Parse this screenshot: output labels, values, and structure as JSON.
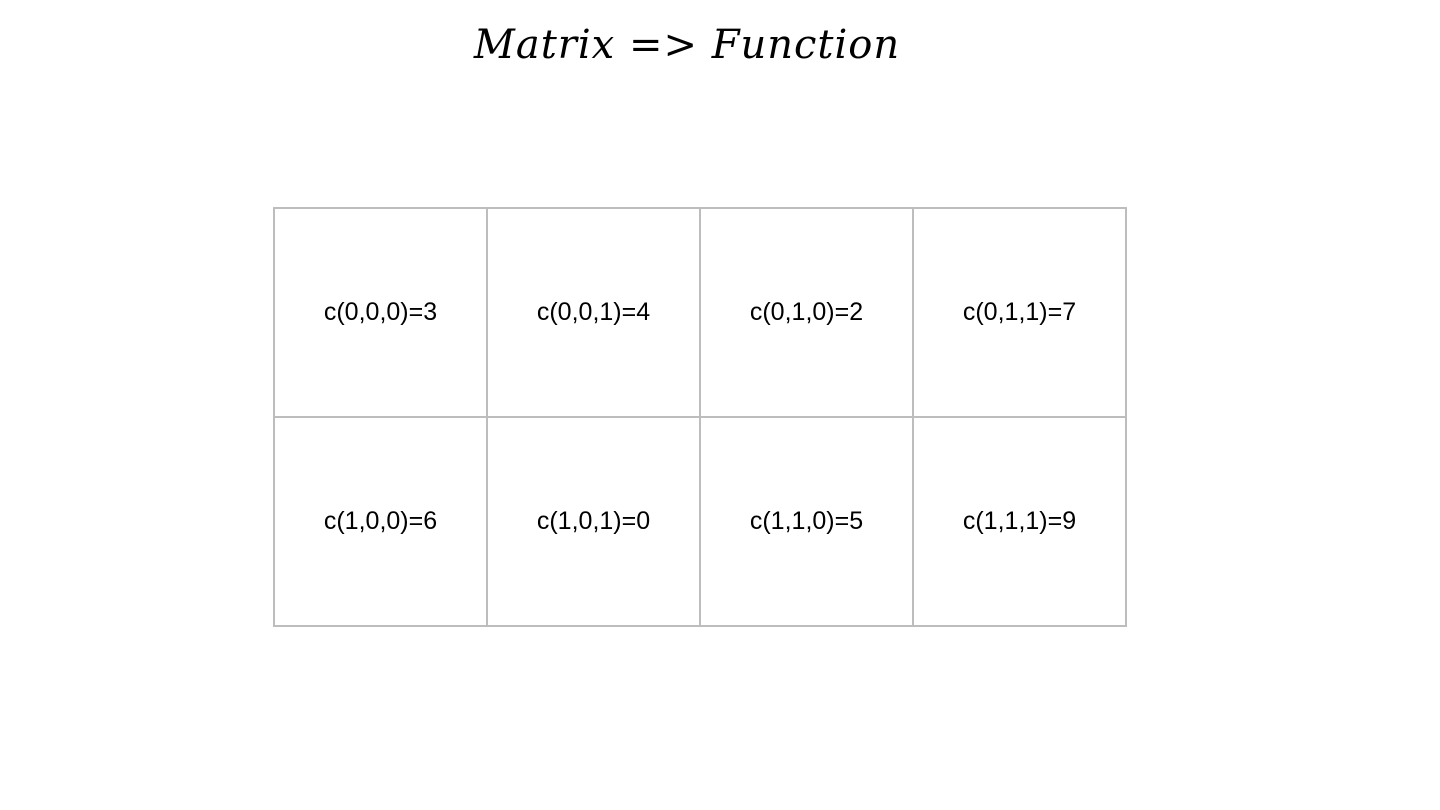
{
  "title": "Matrix => Function",
  "table": {
    "rows": [
      [
        "c(0,0,0)=3",
        "c(0,0,1)=4",
        "c(0,1,0)=2",
        "c(0,1,1)=7"
      ],
      [
        "c(1,0,0)=6",
        "c(1,0,1)=0",
        "c(1,1,0)=5",
        "c(1,1,1)=9"
      ]
    ]
  }
}
